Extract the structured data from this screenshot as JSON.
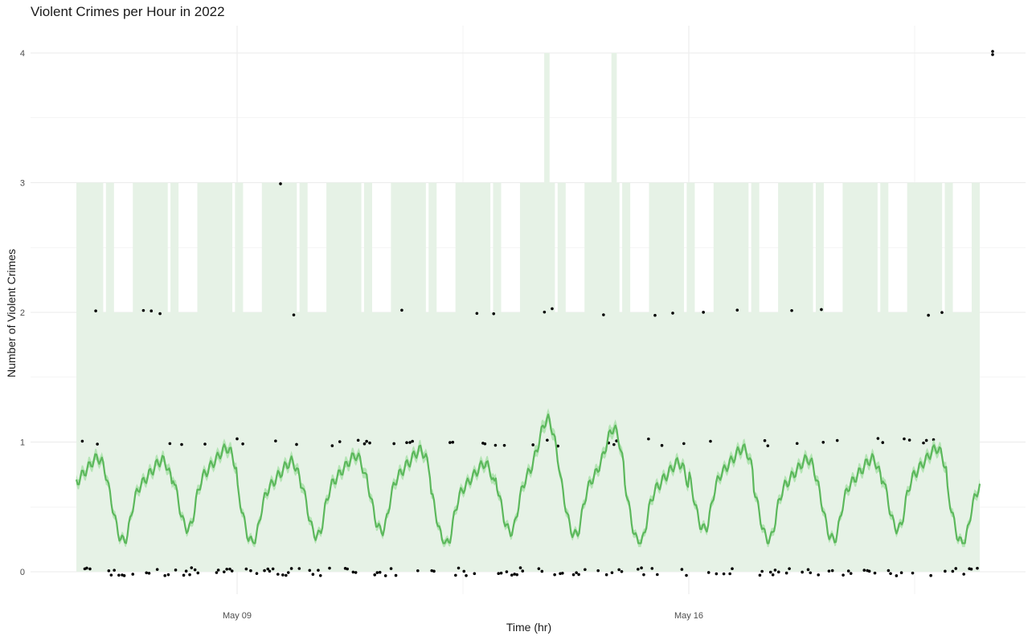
{
  "chart_data": {
    "type": "line",
    "title": "Violent Crimes per Hour in 2022",
    "xlabel": "Time (hr)",
    "ylabel": "Number of Violent Crimes",
    "x_range": [
      "2022-05-05T00:00",
      "2022-05-24T00:00"
    ],
    "ylim": [
      0,
      4
    ],
    "y_ticks": [
      0,
      1,
      2,
      3,
      4
    ],
    "x_ticks": [
      {
        "label": "May 09",
        "date": "2022-05-09"
      },
      {
        "label": "May 16",
        "date": "2022-05-16"
      }
    ],
    "grid": true,
    "legend": "none",
    "series": [
      {
        "kind": "smoothed-mean",
        "daily_profile_by_hour": [
          0.7,
          0.6,
          0.5,
          0.4,
          0.32,
          0.28,
          0.27,
          0.3,
          0.4,
          0.52,
          0.6,
          0.66,
          0.7,
          0.72,
          0.75,
          0.78,
          0.8,
          0.83,
          0.86,
          0.88,
          0.9,
          0.88,
          0.85,
          0.78
        ],
        "note_peaks": [
          {
            "date": "2022-05-13T19:00",
            "value": 1.2
          },
          {
            "date": "2022-05-14T20:00",
            "value": 1.15
          },
          {
            "date": "2022-05-20T20:00",
            "value": 1.08
          }
        ]
      },
      {
        "kind": "prediction-interval",
        "lower": 0,
        "typical_upper": [
          2,
          3
        ],
        "max_upper": 4
      },
      {
        "kind": "observed-counts",
        "values_seen": [
          0,
          1,
          2,
          3,
          4
        ],
        "max_points": [
          {
            "date": "2022-05-20T17:00",
            "value": 4
          }
        ]
      }
    ],
    "colors": {
      "line": "#5cb85c",
      "ribbon_inner": "#a6e0a6",
      "band": "#e6f2e6",
      "points": "#000000",
      "grid": "#ebebeb"
    }
  }
}
